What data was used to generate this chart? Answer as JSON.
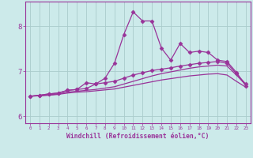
{
  "xlabel": "Windchill (Refroidissement éolien,°C)",
  "background_color": "#cceaea",
  "grid_color": "#aacccc",
  "line_color": "#993399",
  "x_ticks": [
    0,
    1,
    2,
    3,
    4,
    5,
    6,
    7,
    8,
    9,
    10,
    11,
    12,
    13,
    14,
    15,
    16,
    17,
    18,
    19,
    20,
    21,
    22,
    23
  ],
  "ylim": [
    5.85,
    8.55
  ],
  "yticks": [
    6,
    7,
    8
  ],
  "xlim": [
    -0.5,
    23.5
  ],
  "series": [
    {
      "x": [
        0,
        1,
        2,
        3,
        4,
        5,
        6,
        7,
        8,
        9,
        10,
        11,
        12,
        13,
        14,
        15,
        16,
        17,
        18,
        19,
        20,
        21,
        22,
        23
      ],
      "y": [
        6.45,
        6.47,
        6.5,
        6.52,
        6.58,
        6.6,
        6.75,
        6.72,
        6.85,
        7.18,
        7.82,
        8.32,
        8.12,
        8.12,
        7.52,
        7.25,
        7.62,
        7.42,
        7.45,
        7.42,
        7.25,
        7.22,
        6.98,
        6.68
      ],
      "marker": "D",
      "markersize": 2.5,
      "linewidth": 0.9,
      "linestyle": "-"
    },
    {
      "x": [
        0,
        1,
        2,
        3,
        4,
        5,
        6,
        7,
        8,
        9,
        10,
        11,
        12,
        13,
        14,
        15,
        16,
        17,
        18,
        19,
        20,
        21,
        22,
        23
      ],
      "y": [
        6.45,
        6.47,
        6.5,
        6.52,
        6.58,
        6.6,
        6.62,
        6.72,
        6.75,
        6.78,
        6.85,
        6.92,
        6.97,
        7.02,
        7.05,
        7.08,
        7.12,
        7.15,
        7.18,
        7.2,
        7.22,
        7.18,
        6.95,
        6.72
      ],
      "marker": "D",
      "markersize": 2.5,
      "linewidth": 0.9,
      "linestyle": "-"
    },
    {
      "x": [
        0,
        1,
        2,
        3,
        4,
        5,
        6,
        7,
        8,
        9,
        10,
        11,
        12,
        13,
        14,
        15,
        16,
        17,
        18,
        19,
        20,
        21,
        22,
        23
      ],
      "y": [
        6.45,
        6.46,
        6.48,
        6.5,
        6.54,
        6.56,
        6.58,
        6.6,
        6.63,
        6.66,
        6.72,
        6.78,
        6.84,
        6.9,
        6.95,
        6.99,
        7.03,
        7.07,
        7.1,
        7.12,
        7.14,
        7.12,
        6.92,
        6.7
      ],
      "marker": null,
      "linewidth": 0.9,
      "linestyle": "-"
    },
    {
      "x": [
        0,
        1,
        2,
        3,
        4,
        5,
        6,
        7,
        8,
        9,
        10,
        11,
        12,
        13,
        14,
        15,
        16,
        17,
        18,
        19,
        20,
        21,
        22,
        23
      ],
      "y": [
        6.45,
        6.46,
        6.47,
        6.49,
        6.52,
        6.54,
        6.55,
        6.57,
        6.59,
        6.61,
        6.65,
        6.69,
        6.73,
        6.77,
        6.81,
        6.84,
        6.87,
        6.9,
        6.92,
        6.94,
        6.95,
        6.92,
        6.78,
        6.65
      ],
      "marker": null,
      "linewidth": 0.9,
      "linestyle": "-"
    }
  ]
}
